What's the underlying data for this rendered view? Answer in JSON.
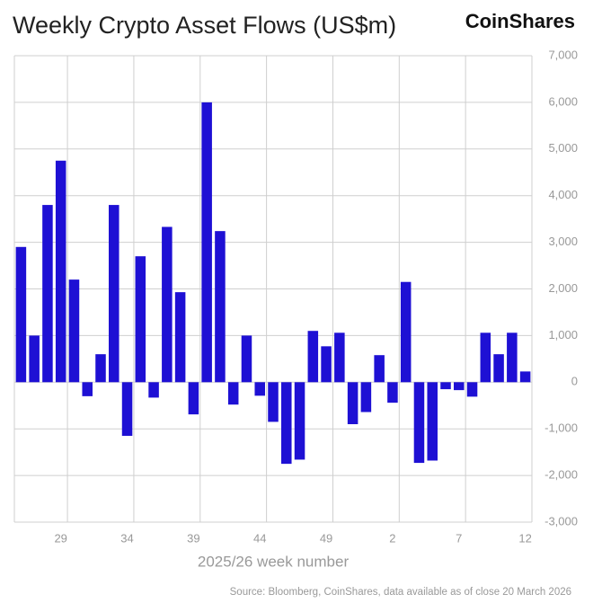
{
  "chart_data": {
    "type": "bar",
    "title": "Weekly Crypto Asset Flows (US$m)",
    "brand": "CoinShares",
    "x_label": "2025/26 week number",
    "source": "Source: Bloomberg, CoinShares, data available as of close 20 March 2026",
    "categories": [
      null,
      null,
      null,
      "29",
      null,
      null,
      null,
      null,
      "34",
      null,
      null,
      null,
      null,
      "39",
      null,
      null,
      null,
      null,
      "44",
      null,
      null,
      null,
      null,
      "49",
      null,
      null,
      null,
      null,
      "2",
      null,
      null,
      null,
      null,
      "7",
      null,
      null,
      null,
      null,
      "12"
    ],
    "values": [
      2900,
      1000,
      3800,
      4750,
      2200,
      -300,
      600,
      3800,
      -1150,
      2700,
      -330,
      3330,
      1930,
      -690,
      6000,
      3240,
      -480,
      1000,
      -290,
      -850,
      -1750,
      -1660,
      1100,
      770,
      1060,
      -900,
      -640,
      580,
      -440,
      2150,
      -1730,
      -1680,
      -150,
      -170,
      -310,
      1060,
      600,
      1060,
      230
    ],
    "color": "#1e10d4",
    "ylim": [
      -3000,
      7000
    ],
    "yticks": [
      {
        "value": -3000,
        "label": "-3,000"
      },
      {
        "value": -2000,
        "label": "-2,000"
      },
      {
        "value": -1000,
        "label": "-1,000"
      },
      0,
      {
        "value": 1000,
        "label": "1,000"
      },
      {
        "value": 2000,
        "label": "2,000"
      },
      {
        "value": 3000,
        "label": "3,000"
      },
      {
        "value": 4000,
        "label": "4,000"
      },
      {
        "value": 5000,
        "label": "5,000"
      },
      {
        "value": 6000,
        "label": "6,000"
      },
      {
        "value": 7000,
        "label": "7,000"
      }
    ],
    "grid": true
  }
}
